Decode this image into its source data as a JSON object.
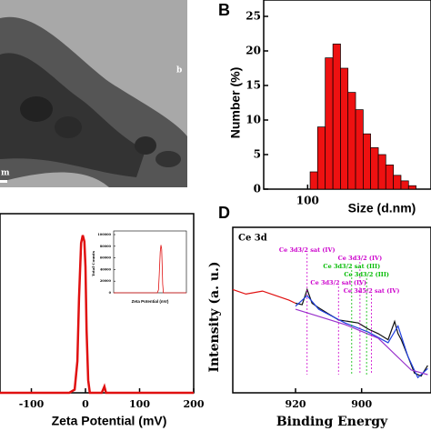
{
  "image": {
    "overlay_label": "b",
    "scale_bar_label": "m"
  },
  "chart_data": [
    {
      "type": "histogram",
      "panel_label": "B",
      "xlabel": "Size (d.nm)",
      "ylabel": "Number (%)",
      "color": "#ee1111",
      "xscale": "log",
      "bins": [
        104,
        117,
        132,
        149,
        168,
        189,
        213,
        240,
        270,
        305,
        343,
        387,
        436,
        491,
        553
      ],
      "values": [
        2.5,
        9,
        19,
        21,
        17.5,
        14,
        11.5,
        8,
        6,
        5,
        3.5,
        2,
        1.2,
        0.5
      ],
      "xlim": [
        50,
        700
      ],
      "xticks": [
        100
      ],
      "ylim": [
        0,
        25
      ],
      "yticks": [
        0,
        5,
        10,
        15,
        20,
        25
      ]
    },
    {
      "type": "line",
      "xlabel": "Zeta Potential (mV)",
      "x": [
        -158,
        -30,
        -20,
        -15,
        -12,
        -8,
        -5,
        -2,
        0,
        2,
        5,
        8,
        30,
        35,
        38,
        200
      ],
      "series": [
        {
          "color": "#e01010",
          "values": [
            0,
            0,
            2,
            20,
            60,
            95,
            100,
            96,
            80,
            40,
            8,
            0,
            0,
            4,
            0,
            0
          ]
        }
      ],
      "xlim": [
        -158,
        200
      ],
      "xticks": [
        -100,
        0,
        100,
        200
      ],
      "ylim": [
        0,
        105
      ]
    },
    {
      "type": "line",
      "inset": true,
      "xlabel": "Zeta Potential (mV)",
      "ylabel": "Total Counts",
      "x": [
        -200,
        -20,
        -15,
        -12,
        -8,
        -5,
        -2,
        0,
        2,
        5,
        100
      ],
      "series": [
        {
          "color": "#e01010",
          "values": [
            0,
            0,
            5000,
            30000,
            70000,
            82000,
            75000,
            50000,
            15000,
            0,
            0
          ]
        }
      ],
      "xlim": [
        -200,
        100
      ],
      "ylim": [
        0,
        100000
      ],
      "yticks": [
        0,
        20000,
        40000,
        60000,
        80000,
        100000
      ]
    },
    {
      "type": "line",
      "panel_label": "D",
      "subtitle": "Ce 3d",
      "xlabel": "Binding Energy",
      "ylabel": "Intensity (a. u.)",
      "series": [
        {
          "color": "#e01010",
          "x": [
            939,
            935,
            930,
            926,
            922,
            920
          ],
          "values": [
            68,
            65,
            67,
            64,
            61,
            59
          ]
        },
        {
          "color": "#111111",
          "x": [
            920,
            918,
            916.5,
            915,
            913,
            910,
            907,
            904,
            901,
            898,
            895,
            892,
            890,
            889,
            888,
            886,
            884,
            882,
            880
          ],
          "values": [
            59,
            58,
            68,
            59,
            56,
            52,
            48,
            47,
            46,
            42,
            39,
            35,
            47,
            39,
            35,
            24,
            13,
            11,
            18
          ]
        },
        {
          "color": "#2040e0",
          "x": [
            920,
            916.5,
            913,
            905,
            898,
            892,
            889,
            886,
            883,
            880
          ],
          "values": [
            57,
            64,
            55,
            46,
            40,
            33,
            44,
            24,
            10,
            16
          ]
        },
        {
          "color": "#9933cc",
          "x": [
            920,
            905,
            895,
            885,
            880
          ],
          "values": [
            55,
            45,
            36,
            15,
            12
          ]
        }
      ],
      "annotations": [
        {
          "text": "Ce 3d3/2 sat (IV)",
          "x": 916.5,
          "color": "#cc00cc"
        },
        {
          "text": "Ce 3d3/2 (IV)",
          "x": 900.5,
          "color": "#cc00cc"
        },
        {
          "text": "Ce 3d3/2 sat (III)",
          "x": 903,
          "color": "#00bb00"
        },
        {
          "text": "Ce 3d3/2 (III)",
          "x": 898.5,
          "color": "#00bb00"
        },
        {
          "text": "Ce 3d3/2 sat (IV)",
          "x": 907,
          "color": "#cc00cc"
        },
        {
          "text": "Ce 3d5/2 sat (IV)",
          "x": 897,
          "color": "#cc00cc"
        }
      ],
      "xlim": [
        939,
        879
      ],
      "xticks": [
        920,
        900
      ],
      "ylim": [
        0,
        100
      ]
    }
  ]
}
